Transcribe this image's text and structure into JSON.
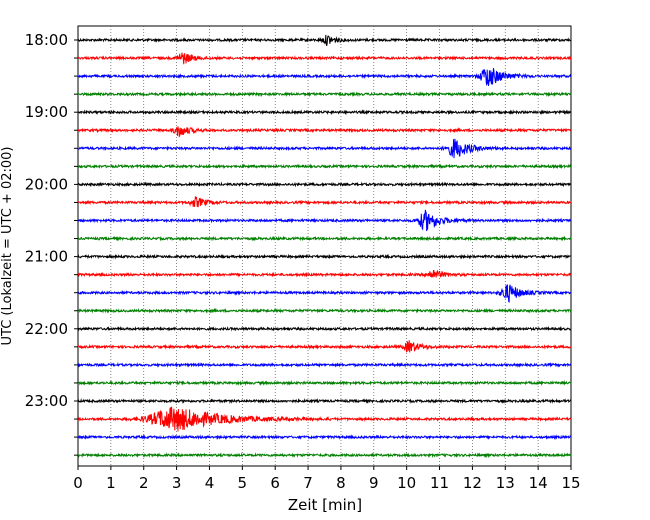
{
  "chart_data": {
    "type": "line",
    "title": "",
    "xlabel": "Zeit  [min]",
    "ylabel": "UTC (Lokalzeit = UTC + 02:00)",
    "xlim": [
      0,
      15
    ],
    "x_ticks": [
      0,
      1,
      2,
      3,
      4,
      5,
      6,
      7,
      8,
      9,
      10,
      11,
      12,
      13,
      14,
      15
    ],
    "x_tick_labels": [
      "0",
      "1",
      "2",
      "3",
      "4",
      "5",
      "6",
      "7",
      "8",
      "9",
      "10",
      "11",
      "12",
      "13",
      "14",
      "15"
    ],
    "grid": "vertical dotted at each minute",
    "y_tick_labels": [
      "18:00",
      "19:00",
      "20:00",
      "21:00",
      "22:00",
      "23:00"
    ],
    "series_colors": [
      "#000000",
      "#ff0000",
      "#0000ff",
      "#008000"
    ],
    "traces": [
      {
        "hour_row": "18:00",
        "offset_min": 0,
        "color": "#000000",
        "events": [
          {
            "t": 7.6,
            "amp": 5,
            "dur": 0.5
          }
        ]
      },
      {
        "hour_row": "18:15",
        "offset_min": 15,
        "color": "#ff0000",
        "events": [
          {
            "t": 3.2,
            "amp": 6,
            "dur": 0.6
          }
        ]
      },
      {
        "hour_row": "18:30",
        "offset_min": 30,
        "color": "#0000ff",
        "events": [
          {
            "t": 12.5,
            "amp": 11,
            "dur": 0.8
          }
        ]
      },
      {
        "hour_row": "18:45",
        "offset_min": 45,
        "color": "#008000",
        "events": []
      },
      {
        "hour_row": "19:00",
        "offset_min": 0,
        "color": "#000000",
        "events": []
      },
      {
        "hour_row": "19:15",
        "offset_min": 15,
        "color": "#ff0000",
        "events": [
          {
            "t": 3.1,
            "amp": 6,
            "dur": 0.6
          }
        ]
      },
      {
        "hour_row": "19:30",
        "offset_min": 30,
        "color": "#0000ff",
        "events": [
          {
            "t": 11.5,
            "amp": 10,
            "dur": 0.8
          }
        ]
      },
      {
        "hour_row": "19:45",
        "offset_min": 45,
        "color": "#008000",
        "events": []
      },
      {
        "hour_row": "20:00",
        "offset_min": 0,
        "color": "#000000",
        "events": []
      },
      {
        "hour_row": "20:15",
        "offset_min": 15,
        "color": "#ff0000",
        "events": [
          {
            "t": 3.6,
            "amp": 5,
            "dur": 0.6
          }
        ]
      },
      {
        "hour_row": "20:30",
        "offset_min": 30,
        "color": "#0000ff",
        "events": [
          {
            "t": 10.6,
            "amp": 10,
            "dur": 0.8
          }
        ]
      },
      {
        "hour_row": "20:45",
        "offset_min": 45,
        "color": "#008000",
        "events": []
      },
      {
        "hour_row": "21:00",
        "offset_min": 0,
        "color": "#000000",
        "events": []
      },
      {
        "hour_row": "21:15",
        "offset_min": 15,
        "color": "#ff0000",
        "events": [
          {
            "t": 10.8,
            "amp": 5,
            "dur": 0.6
          }
        ]
      },
      {
        "hour_row": "21:30",
        "offset_min": 30,
        "color": "#0000ff",
        "events": [
          {
            "t": 13.1,
            "amp": 9,
            "dur": 0.7
          }
        ]
      },
      {
        "hour_row": "21:45",
        "offset_min": 45,
        "color": "#008000",
        "events": []
      },
      {
        "hour_row": "22:00",
        "offset_min": 0,
        "color": "#000000",
        "events": []
      },
      {
        "hour_row": "22:15",
        "offset_min": 15,
        "color": "#ff0000",
        "events": [
          {
            "t": 10.1,
            "amp": 6,
            "dur": 0.6
          }
        ]
      },
      {
        "hour_row": "22:30",
        "offset_min": 30,
        "color": "#0000ff",
        "events": []
      },
      {
        "hour_row": "22:45",
        "offset_min": 45,
        "color": "#008000",
        "events": []
      },
      {
        "hour_row": "23:00",
        "offset_min": 0,
        "color": "#000000",
        "events": []
      },
      {
        "hour_row": "23:15",
        "offset_min": 15,
        "color": "#ff0000",
        "events": [
          {
            "t": 3.0,
            "amp": 12,
            "dur": 2.6
          }
        ]
      },
      {
        "hour_row": "23:30",
        "offset_min": 30,
        "color": "#0000ff",
        "events": []
      },
      {
        "hour_row": "23:45",
        "offset_min": 45,
        "color": "#008000",
        "events": []
      }
    ]
  }
}
